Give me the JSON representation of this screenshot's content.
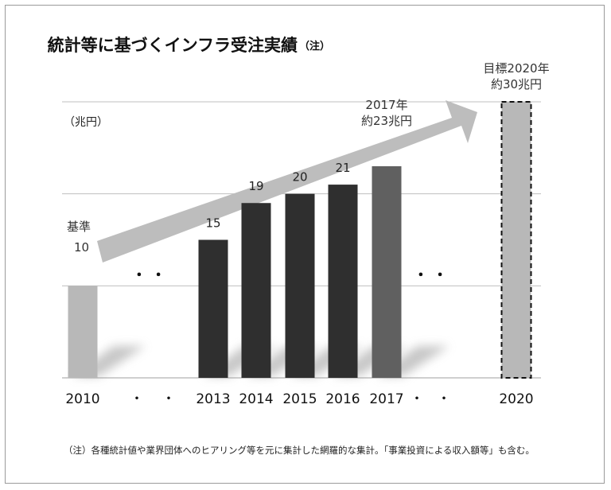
{
  "chart_data": {
    "type": "bar",
    "title": "統計等に基づくインフラ受注実績",
    "title_note": "（注）",
    "ylabel": "（兆円）",
    "ylim": [
      0,
      30
    ],
    "grid": true,
    "categories": [
      "2010",
      "・",
      "・",
      "2013",
      "2014",
      "2015",
      "2016",
      "2017",
      "・",
      "・",
      "2020"
    ],
    "values": [
      10,
      null,
      null,
      15,
      19,
      20,
      21,
      23,
      null,
      null,
      30
    ],
    "data_labels": [
      "",
      "",
      "",
      "15",
      "19",
      "20",
      "21",
      "",
      "",
      "",
      ""
    ],
    "bar_styles": [
      "light",
      "",
      "",
      "dark",
      "dark",
      "dark",
      "dark",
      "medium",
      "",
      "",
      "target-dashed"
    ],
    "gap_dots": "・ ・",
    "colors": {
      "light": "#b8b8b8",
      "dark": "#2f2f2f",
      "medium": "#606060",
      "arrow": "#bdbdbd",
      "grid": "#bfbfbf"
    },
    "annotations": {
      "base_label": "基準",
      "base_value": "10",
      "y2017_line1": "2017年",
      "y2017_line2": "約23兆円",
      "target_line1": "目標2020年",
      "target_line2": "約30兆円"
    },
    "footnote": "（注）各種統計値や業界団体へのヒアリング等を元に集計した網羅的な集計。「事業投資による収入額等」も含む。"
  }
}
